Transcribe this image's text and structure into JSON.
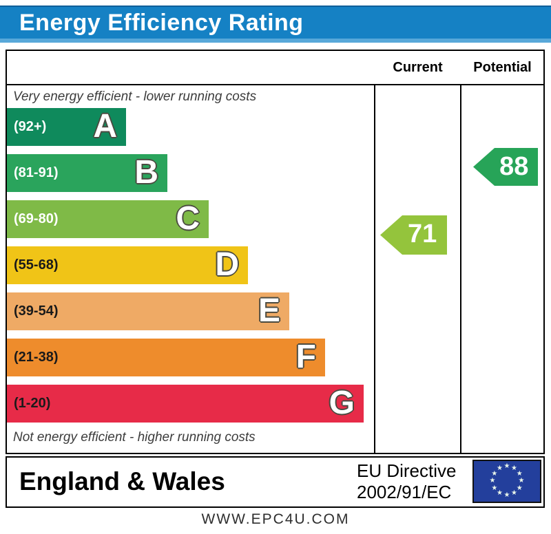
{
  "header": {
    "title": "Energy Efficiency Rating"
  },
  "table": {
    "columns": {
      "current": "Current",
      "potential": "Potential"
    },
    "captions": {
      "top": "Very energy efficient - lower running costs",
      "bottom": "Not energy efficient - higher running costs"
    }
  },
  "chart_data": {
    "type": "bar",
    "title": "Energy Efficiency Rating",
    "bands": [
      {
        "letter": "A",
        "range_label": "(92+)",
        "range_min": 92,
        "range_max": 100,
        "color": "#0f8a5c",
        "label_color": "#ffffff"
      },
      {
        "letter": "B",
        "range_label": "(81-91)",
        "range_min": 81,
        "range_max": 91,
        "color": "#2aa45c",
        "label_color": "#ffffff"
      },
      {
        "letter": "C",
        "range_label": "(69-80)",
        "range_min": 69,
        "range_max": 80,
        "color": "#7fba47",
        "label_color": "#ffffff"
      },
      {
        "letter": "D",
        "range_label": "(55-68)",
        "range_min": 55,
        "range_max": 68,
        "color": "#f0c417",
        "label_color": "#1a1a1a"
      },
      {
        "letter": "E",
        "range_label": "(39-54)",
        "range_min": 39,
        "range_max": 54,
        "color": "#efaa65",
        "label_color": "#1a1a1a"
      },
      {
        "letter": "F",
        "range_label": "(21-38)",
        "range_min": 21,
        "range_max": 38,
        "color": "#ee8c2c",
        "label_color": "#1a1a1a"
      },
      {
        "letter": "G",
        "range_label": "(1-20)",
        "range_min": 1,
        "range_max": 20,
        "color": "#e72b48",
        "label_color": "#1a1a1a"
      }
    ],
    "ratings": {
      "current": {
        "label": "Current",
        "value": 71,
        "band": "C",
        "color": "#94c43c"
      },
      "potential": {
        "label": "Potential",
        "value": 88,
        "band": "B",
        "color": "#27a458"
      }
    },
    "legend_position": "none",
    "grid": false
  },
  "footer": {
    "region": "England & Wales",
    "directive_line1": "EU Directive",
    "directive_line2": "2002/91/EC",
    "flag_icon": "eu-flag-icon"
  },
  "website": "WWW.EPC4U.COM",
  "colors": {
    "banner_bg": "#1581c4",
    "banner_stripe": "#58a8d9",
    "banner_text": "#ffffff",
    "border": "#000000"
  }
}
